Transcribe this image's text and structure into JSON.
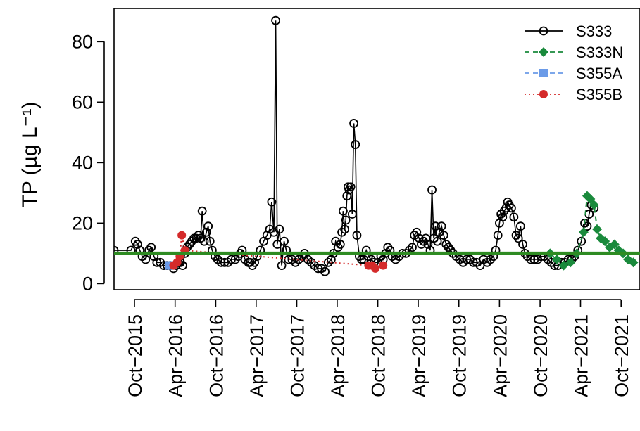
{
  "chart_data": {
    "type": "line",
    "title": "",
    "ylabel": "TP (µg L⁻¹)",
    "xlabel": "",
    "ylim": [
      -2,
      91
    ],
    "xlim": [
      "2015-07-01",
      "2021-12-25"
    ],
    "y_ticks": [
      0,
      20,
      40,
      60,
      80
    ],
    "x_ticks": [
      {
        "date": "2015-10-01",
        "label": "Oct−2015"
      },
      {
        "date": "2016-04-01",
        "label": "Apr−2016"
      },
      {
        "date": "2016-10-01",
        "label": "Oct−2016"
      },
      {
        "date": "2017-04-01",
        "label": "Apr−2017"
      },
      {
        "date": "2017-10-01",
        "label": "Oct−2017"
      },
      {
        "date": "2018-04-01",
        "label": "Apr−2018"
      },
      {
        "date": "2018-10-01",
        "label": "Oct−2018"
      },
      {
        "date": "2019-04-01",
        "label": "Apr−2019"
      },
      {
        "date": "2019-10-01",
        "label": "Oct−2019"
      },
      {
        "date": "2020-04-01",
        "label": "Apr−2020"
      },
      {
        "date": "2020-10-01",
        "label": "Oct−2020"
      },
      {
        "date": "2021-04-01",
        "label": "Apr−2021"
      },
      {
        "date": "2021-10-01",
        "label": "Oct−2021"
      }
    ],
    "reference_line": {
      "y": 10,
      "color": "#2e8b22"
    },
    "legend_position": "top-right",
    "series": [
      {
        "name": "S333",
        "color": "#000000",
        "marker": "open-circle",
        "line": "solid",
        "points": [
          [
            "2015-07-01",
            11
          ],
          [
            "2015-09-15",
            11
          ],
          [
            "2015-10-05",
            14
          ],
          [
            "2015-10-15",
            13
          ],
          [
            "2015-10-25",
            11
          ],
          [
            "2015-11-05",
            9
          ],
          [
            "2015-11-20",
            8
          ],
          [
            "2015-12-05",
            11
          ],
          [
            "2015-12-15",
            12
          ],
          [
            "2015-12-28",
            9
          ],
          [
            "2016-01-10",
            7
          ],
          [
            "2016-01-25",
            7
          ],
          [
            "2016-02-10",
            6
          ],
          [
            "2016-02-25",
            6
          ],
          [
            "2016-03-10",
            6
          ],
          [
            "2016-03-25",
            5
          ],
          [
            "2016-04-05",
            6
          ],
          [
            "2016-04-15",
            7
          ],
          [
            "2016-04-25",
            7
          ],
          [
            "2016-05-05",
            6
          ],
          [
            "2016-05-15",
            10
          ],
          [
            "2016-05-25",
            12
          ],
          [
            "2016-06-05",
            13
          ],
          [
            "2016-06-15",
            14
          ],
          [
            "2016-06-25",
            15
          ],
          [
            "2016-07-05",
            15
          ],
          [
            "2016-07-15",
            16
          ],
          [
            "2016-07-25",
            15
          ],
          [
            "2016-08-01",
            24
          ],
          [
            "2016-08-10",
            14
          ],
          [
            "2016-08-20",
            17
          ],
          [
            "2016-08-28",
            19
          ],
          [
            "2016-09-05",
            14
          ],
          [
            "2016-09-15",
            11
          ],
          [
            "2016-09-28",
            9
          ],
          [
            "2016-10-10",
            8
          ],
          [
            "2016-10-25",
            7
          ],
          [
            "2016-11-10",
            7
          ],
          [
            "2016-11-25",
            7
          ],
          [
            "2016-12-10",
            8
          ],
          [
            "2016-12-28",
            8
          ],
          [
            "2017-01-10",
            9
          ],
          [
            "2017-01-20",
            10
          ],
          [
            "2017-01-28",
            11
          ],
          [
            "2017-02-10",
            8
          ],
          [
            "2017-02-25",
            7
          ],
          [
            "2017-03-05",
            7
          ],
          [
            "2017-03-15",
            6
          ],
          [
            "2017-03-25",
            7
          ],
          [
            "2017-04-05",
            9
          ],
          [
            "2017-04-20",
            11
          ],
          [
            "2017-05-05",
            14
          ],
          [
            "2017-05-20",
            16
          ],
          [
            "2017-06-01",
            18
          ],
          [
            "2017-06-10",
            27
          ],
          [
            "2017-06-20",
            17
          ],
          [
            "2017-06-28",
            87
          ],
          [
            "2017-07-05",
            13
          ],
          [
            "2017-07-15",
            18
          ],
          [
            "2017-07-25",
            6
          ],
          [
            "2017-08-05",
            14
          ],
          [
            "2017-08-15",
            11
          ],
          [
            "2017-08-25",
            8
          ],
          [
            "2017-09-10",
            8
          ],
          [
            "2017-09-25",
            7
          ],
          [
            "2017-10-10",
            8
          ],
          [
            "2017-10-25",
            9
          ],
          [
            "2017-11-05",
            10
          ],
          [
            "2017-11-20",
            8
          ],
          [
            "2017-12-05",
            7
          ],
          [
            "2017-12-20",
            6
          ],
          [
            "2018-01-05",
            5
          ],
          [
            "2018-01-20",
            5
          ],
          [
            "2018-02-05",
            4
          ],
          [
            "2018-02-20",
            7
          ],
          [
            "2018-03-05",
            8
          ],
          [
            "2018-03-15",
            10
          ],
          [
            "2018-03-25",
            14
          ],
          [
            "2018-04-05",
            12
          ],
          [
            "2018-04-15",
            13
          ],
          [
            "2018-04-22",
            17
          ],
          [
            "2018-04-28",
            24
          ],
          [
            "2018-05-05",
            18
          ],
          [
            "2018-05-10",
            21
          ],
          [
            "2018-05-15",
            29
          ],
          [
            "2018-05-20",
            32
          ],
          [
            "2018-05-25",
            31
          ],
          [
            "2018-06-01",
            32
          ],
          [
            "2018-06-08",
            23
          ],
          [
            "2018-06-15",
            53
          ],
          [
            "2018-06-22",
            46
          ],
          [
            "2018-06-29",
            16
          ],
          [
            "2018-07-10",
            9
          ],
          [
            "2018-07-20",
            8
          ],
          [
            "2018-07-30",
            8
          ],
          [
            "2018-08-10",
            11
          ],
          [
            "2018-08-20",
            9
          ],
          [
            "2018-09-01",
            8
          ],
          [
            "2018-09-15",
            7
          ],
          [
            "2018-10-01",
            7
          ],
          [
            "2018-10-15",
            9
          ],
          [
            "2018-10-25",
            8
          ],
          [
            "2018-11-05",
            10
          ],
          [
            "2018-11-15",
            12
          ],
          [
            "2018-11-25",
            11
          ],
          [
            "2018-12-05",
            9
          ],
          [
            "2018-12-20",
            8
          ],
          [
            "2019-01-05",
            9
          ],
          [
            "2019-01-20",
            10
          ],
          [
            "2019-02-05",
            10
          ],
          [
            "2019-02-20",
            11
          ],
          [
            "2019-03-05",
            12
          ],
          [
            "2019-03-15",
            16
          ],
          [
            "2019-03-25",
            17
          ],
          [
            "2019-04-05",
            15
          ],
          [
            "2019-04-15",
            13
          ],
          [
            "2019-04-25",
            14
          ],
          [
            "2019-05-05",
            15
          ],
          [
            "2019-05-15",
            13
          ],
          [
            "2019-05-25",
            11
          ],
          [
            "2019-06-02",
            31
          ],
          [
            "2019-06-10",
            15
          ],
          [
            "2019-06-18",
            19
          ],
          [
            "2019-06-26",
            14
          ],
          [
            "2019-07-05",
            17
          ],
          [
            "2019-07-15",
            19
          ],
          [
            "2019-07-25",
            16
          ],
          [
            "2019-08-05",
            13
          ],
          [
            "2019-08-15",
            12
          ],
          [
            "2019-08-25",
            11
          ],
          [
            "2019-09-05",
            10
          ],
          [
            "2019-09-20",
            9
          ],
          [
            "2019-10-05",
            8
          ],
          [
            "2019-10-20",
            7
          ],
          [
            "2019-11-05",
            8
          ],
          [
            "2019-11-20",
            8
          ],
          [
            "2019-12-05",
            7
          ],
          [
            "2019-12-20",
            7
          ],
          [
            "2020-01-05",
            6
          ],
          [
            "2020-01-20",
            8
          ],
          [
            "2020-02-05",
            7
          ],
          [
            "2020-02-20",
            8
          ],
          [
            "2020-03-05",
            9
          ],
          [
            "2020-03-15",
            11
          ],
          [
            "2020-03-25",
            16
          ],
          [
            "2020-04-01",
            20
          ],
          [
            "2020-04-08",
            23
          ],
          [
            "2020-04-15",
            22
          ],
          [
            "2020-04-22",
            24
          ],
          [
            "2020-05-01",
            25
          ],
          [
            "2020-05-08",
            27
          ],
          [
            "2020-05-15",
            26
          ],
          [
            "2020-05-25",
            25
          ],
          [
            "2020-06-05",
            22
          ],
          [
            "2020-06-15",
            16
          ],
          [
            "2020-06-25",
            15
          ],
          [
            "2020-07-05",
            19
          ],
          [
            "2020-07-15",
            13
          ],
          [
            "2020-07-25",
            10
          ],
          [
            "2020-08-05",
            9
          ],
          [
            "2020-08-20",
            8
          ],
          [
            "2020-09-05",
            8
          ],
          [
            "2020-09-20",
            8
          ],
          [
            "2020-10-05",
            9
          ],
          [
            "2020-10-20",
            9
          ],
          [
            "2020-11-05",
            8
          ],
          [
            "2020-11-20",
            7
          ],
          [
            "2020-12-05",
            6
          ],
          [
            "2020-12-20",
            6
          ],
          [
            "2021-01-05",
            7
          ],
          [
            "2021-01-20",
            7
          ],
          [
            "2021-02-05",
            8
          ],
          [
            "2021-02-20",
            8
          ],
          [
            "2021-03-05",
            9
          ],
          [
            "2021-03-20",
            11
          ],
          [
            "2021-04-05",
            14
          ],
          [
            "2021-04-20",
            20
          ],
          [
            "2021-05-01",
            19
          ],
          [
            "2021-05-10",
            23
          ],
          [
            "2021-05-20",
            26
          ],
          [
            "2021-06-01",
            25
          ]
        ]
      },
      {
        "name": "S333N",
        "color": "#1a8a3c",
        "marker": "diamond",
        "line": "dashed",
        "points": [
          [
            "2020-11-15",
            10
          ],
          [
            "2020-12-15",
            8
          ],
          [
            "2021-01-15",
            6
          ],
          [
            "2021-02-15",
            7
          ],
          [
            "2021-03-15",
            10
          ],
          [
            "2021-04-15",
            17
          ],
          [
            "2021-05-01",
            29
          ],
          [
            "2021-05-15",
            28
          ],
          [
            "2021-06-01",
            26
          ],
          [
            "2021-06-15",
            18
          ],
          [
            "2021-07-01",
            15
          ],
          [
            "2021-07-20",
            14
          ],
          [
            "2021-08-10",
            12
          ],
          [
            "2021-09-01",
            13
          ],
          [
            "2021-09-20",
            11
          ],
          [
            "2021-10-10",
            10
          ],
          [
            "2021-11-01",
            8
          ],
          [
            "2021-11-25",
            7
          ]
        ]
      },
      {
        "name": "S355A",
        "color": "#6b9be8",
        "marker": "square",
        "line": "dashed",
        "points": [
          [
            "2016-03-05",
            6
          ],
          [
            "2016-03-15",
            6
          ]
        ]
      },
      {
        "name": "S355B",
        "color": "#d42a2a",
        "marker": "filled-circle",
        "line": "dotted",
        "points": [
          [
            "2016-03-25",
            6
          ],
          [
            "2016-04-10",
            7
          ],
          [
            "2016-04-22",
            9
          ],
          [
            "2016-05-01",
            16
          ],
          [
            "2016-05-15",
            11
          ],
          [
            "2018-08-20",
            6
          ],
          [
            "2018-09-05",
            6
          ],
          [
            "2018-09-20",
            5
          ],
          [
            "2018-10-25",
            6
          ]
        ]
      }
    ]
  }
}
